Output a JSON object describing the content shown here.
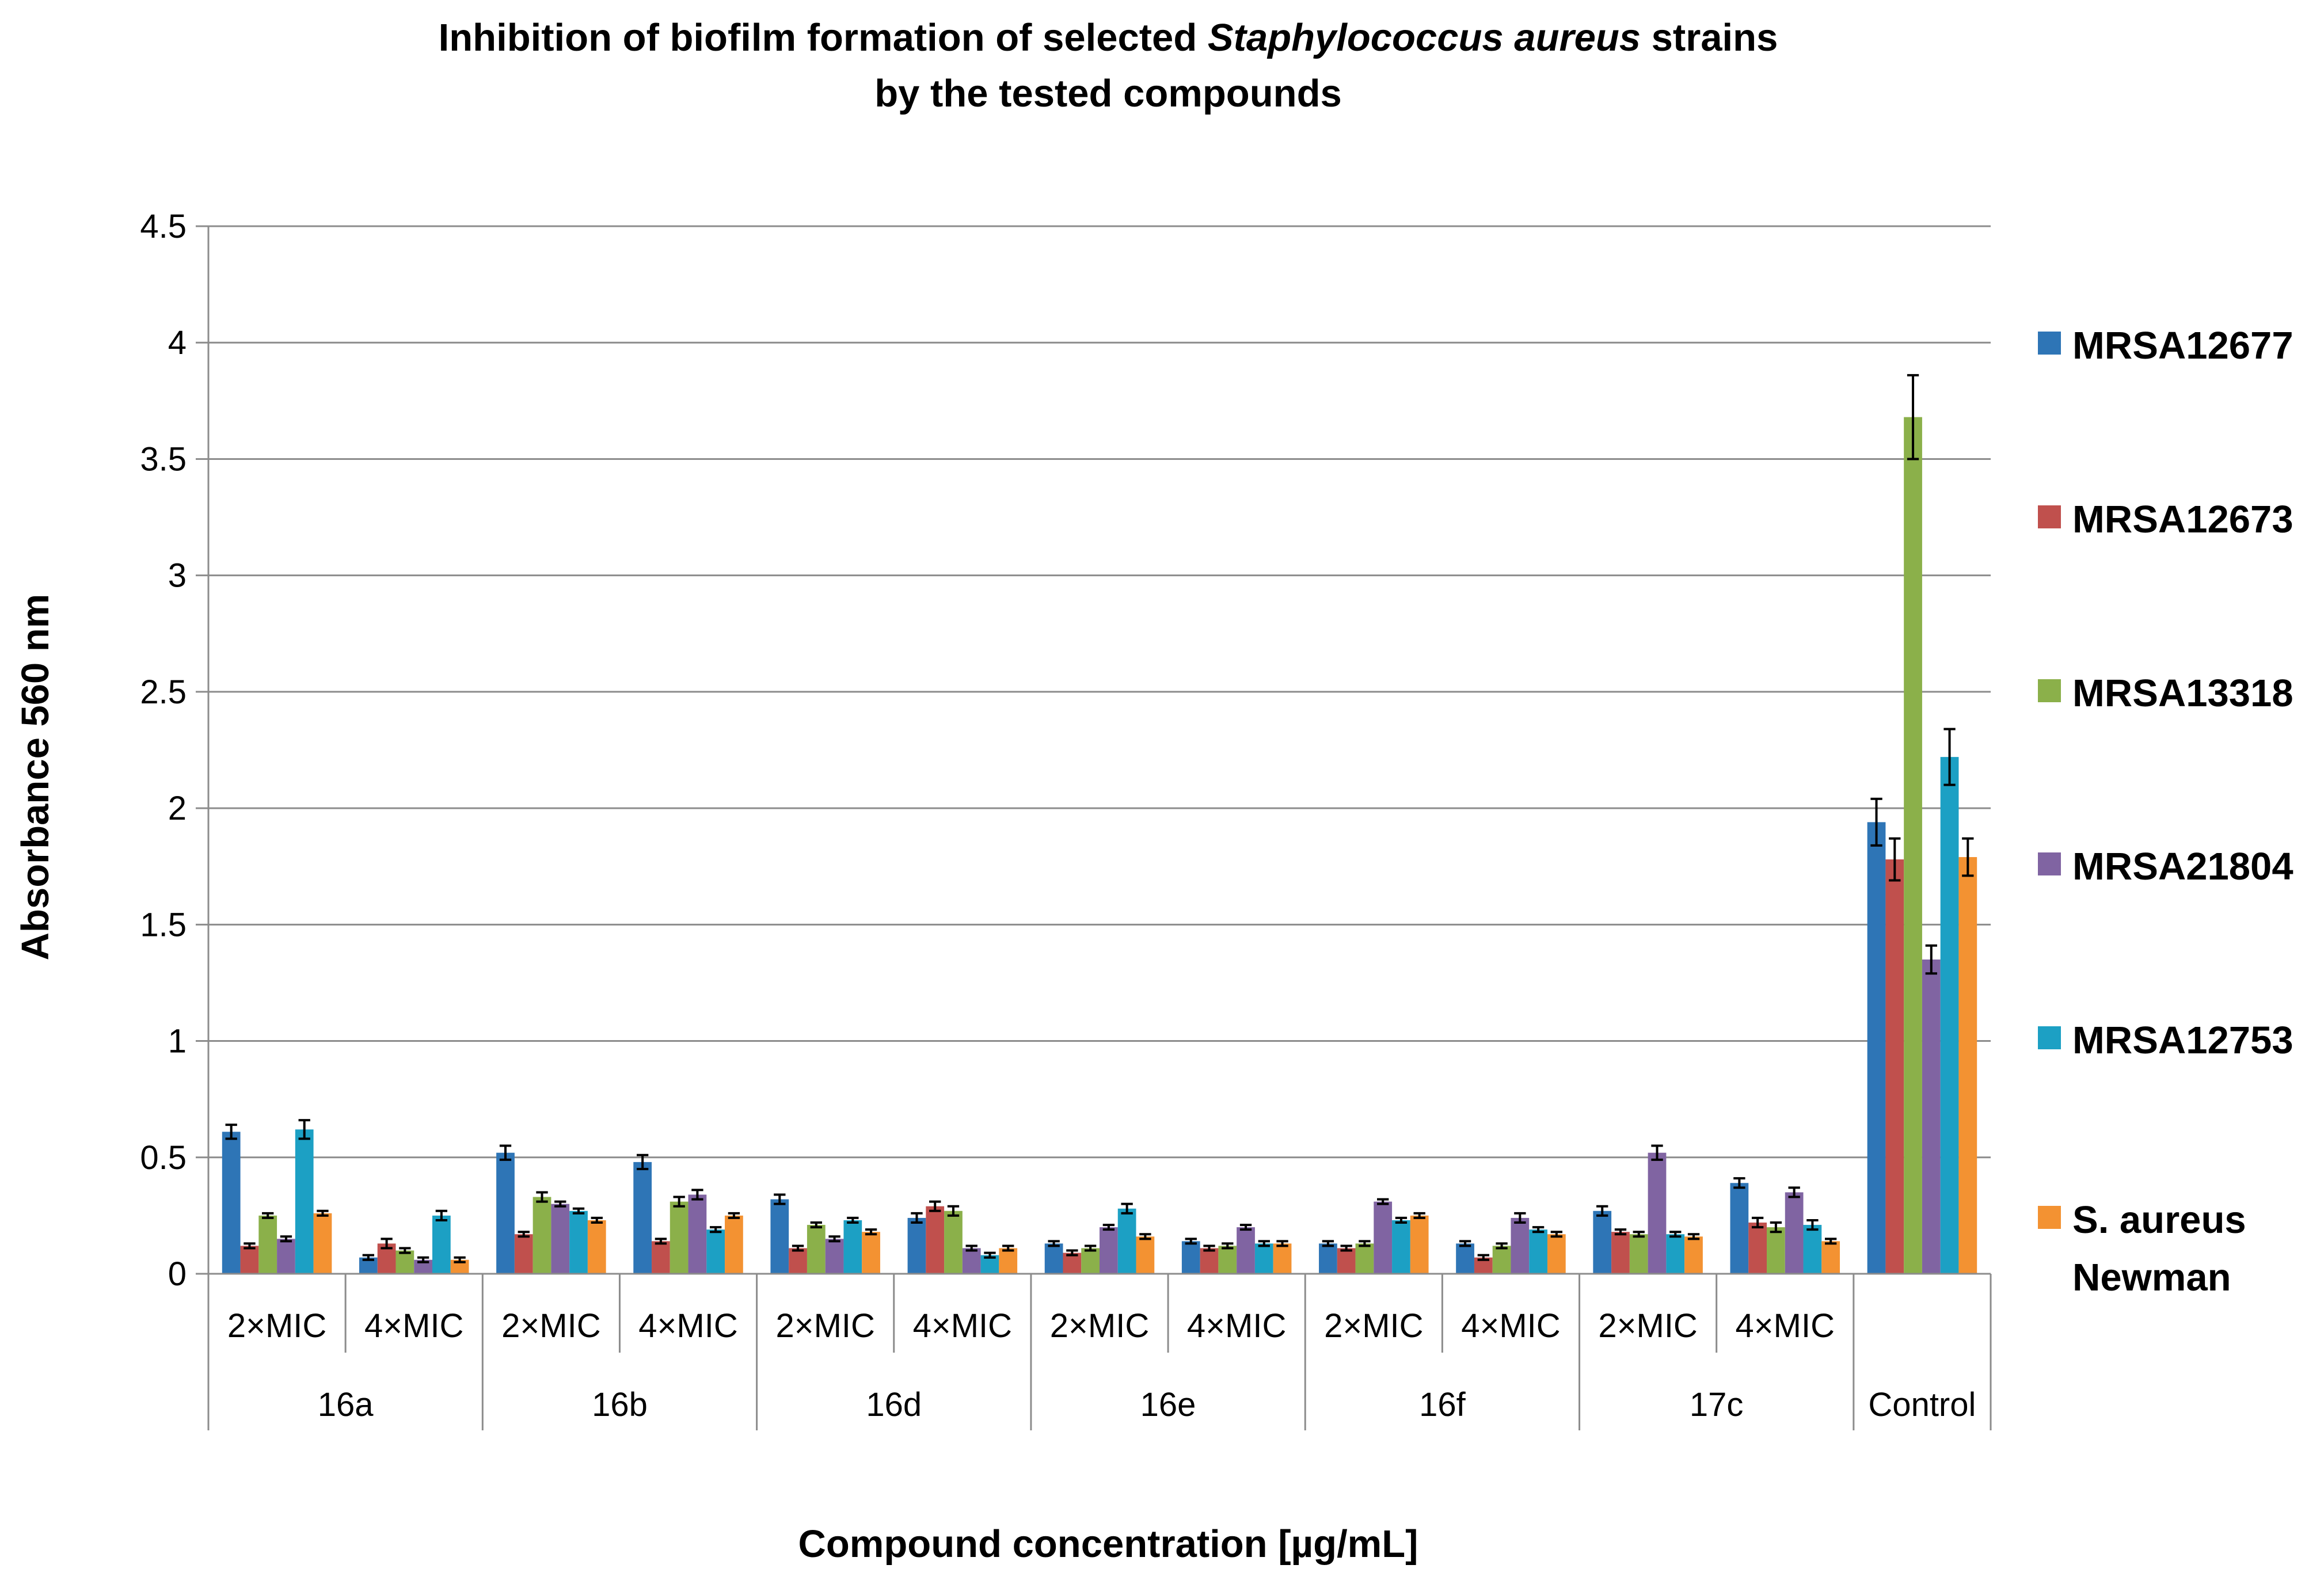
{
  "chart_data": {
    "type": "bar",
    "title_part1": "Inhibition of biofilm formation of selected ",
    "title_italic": "Staphylococcus aureus",
    "title_part2": " strains",
    "title_line2": "by the tested compounds",
    "xlabel": "Compound concentration [µg/mL]",
    "ylabel": "Absorbance 560 nm",
    "ylim": [
      0,
      4.5
    ],
    "yticks": [
      "0",
      "0.5",
      "1",
      "1.5",
      "2",
      "2.5",
      "3",
      "3.5",
      "4",
      "4.5"
    ],
    "groups": [
      {
        "label": "16a",
        "subs": [
          "2×MIC",
          "4×MIC"
        ]
      },
      {
        "label": "16b",
        "subs": [
          "2×MIC",
          "4×MIC"
        ]
      },
      {
        "label": "16d",
        "subs": [
          "2×MIC",
          "4×MIC"
        ]
      },
      {
        "label": "16e",
        "subs": [
          "2×MIC",
          "4×MIC"
        ]
      },
      {
        "label": "16f",
        "subs": [
          "2×MIC",
          "4×MIC"
        ]
      },
      {
        "label": "17c",
        "subs": [
          "2×MIC",
          "4×MIC"
        ]
      },
      {
        "label": "Control",
        "subs": [
          ""
        ]
      }
    ],
    "series": [
      {
        "name": "MRSA12677",
        "color": "#2E75B6",
        "values": [
          0.61,
          0.07,
          0.52,
          0.48,
          0.32,
          0.24,
          0.13,
          0.14,
          0.13,
          0.13,
          0.27,
          0.39,
          1.94
        ],
        "errors": [
          0.03,
          0.01,
          0.03,
          0.03,
          0.02,
          0.02,
          0.01,
          0.01,
          0.01,
          0.01,
          0.02,
          0.02,
          0.1
        ]
      },
      {
        "name": "MRSA12673",
        "color": "#C0504D",
        "values": [
          0.12,
          0.13,
          0.17,
          0.14,
          0.11,
          0.29,
          0.09,
          0.11,
          0.11,
          0.07,
          0.18,
          0.22,
          1.78
        ],
        "errors": [
          0.01,
          0.02,
          0.01,
          0.01,
          0.01,
          0.02,
          0.01,
          0.01,
          0.01,
          0.01,
          0.01,
          0.02,
          0.09
        ]
      },
      {
        "name": "MRSA13318",
        "color": "#8BB04A",
        "values": [
          0.25,
          0.1,
          0.33,
          0.31,
          0.21,
          0.27,
          0.11,
          0.12,
          0.13,
          0.12,
          0.17,
          0.2,
          3.68
        ],
        "errors": [
          0.01,
          0.01,
          0.02,
          0.02,
          0.01,
          0.02,
          0.01,
          0.01,
          0.01,
          0.01,
          0.01,
          0.02,
          0.18
        ]
      },
      {
        "name": "MRSA21804",
        "color": "#8064A2",
        "values": [
          0.15,
          0.06,
          0.3,
          0.34,
          0.15,
          0.11,
          0.2,
          0.2,
          0.31,
          0.24,
          0.52,
          0.35,
          1.35
        ],
        "errors": [
          0.01,
          0.01,
          0.01,
          0.02,
          0.01,
          0.01,
          0.01,
          0.01,
          0.01,
          0.02,
          0.03,
          0.02,
          0.06
        ]
      },
      {
        "name": "MRSA12753",
        "color": "#1CA0C4",
        "values": [
          0.62,
          0.25,
          0.27,
          0.19,
          0.23,
          0.08,
          0.28,
          0.13,
          0.23,
          0.19,
          0.17,
          0.21,
          2.22
        ],
        "errors": [
          0.04,
          0.02,
          0.01,
          0.01,
          0.01,
          0.01,
          0.02,
          0.01,
          0.01,
          0.01,
          0.01,
          0.02,
          0.12
        ]
      },
      {
        "name": "S. aureus Newman",
        "name_line1": "S. aureus",
        "name_line2": "Newman",
        "color": "#F39232",
        "values": [
          0.26,
          0.06,
          0.23,
          0.25,
          0.18,
          0.11,
          0.16,
          0.13,
          0.25,
          0.17,
          0.16,
          0.14,
          1.79
        ],
        "errors": [
          0.01,
          0.01,
          0.01,
          0.01,
          0.01,
          0.01,
          0.01,
          0.01,
          0.01,
          0.01,
          0.01,
          0.01,
          0.08
        ]
      }
    ]
  }
}
